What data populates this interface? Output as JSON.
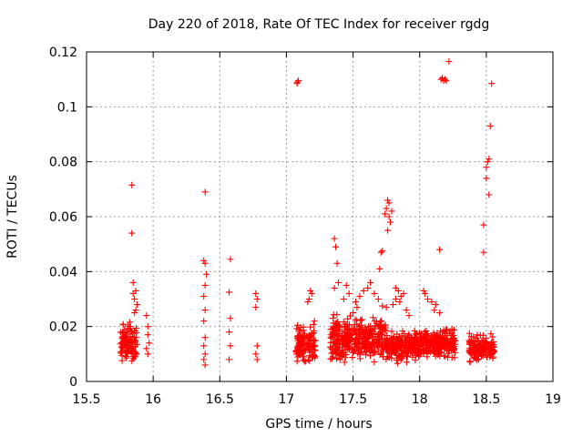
{
  "chart_data": {
    "type": "scatter",
    "title": "Day 220 of 2018, Rate Of TEC Index for receiver rgdg",
    "xlabel": "GPS time / hours",
    "ylabel": "ROTI / TECUs",
    "xlim": [
      15.5,
      19
    ],
    "ylim": [
      0,
      0.12
    ],
    "xticks": [
      "15.5",
      "16",
      "16.5",
      "17",
      "17.5",
      "18",
      "18.5",
      "19"
    ],
    "yticks": [
      "0",
      "0.02",
      "0.04",
      "0.06",
      "0.08",
      "0.1",
      "0.12"
    ],
    "grid": true,
    "marker": "+",
    "colors": {
      "series": "#ff0000",
      "grid": "#a0a0a0",
      "axis": "#000000"
    },
    "series": [
      {
        "name": "ROTI",
        "points": [
          [
            15.84,
            0.0715
          ],
          [
            15.84,
            0.054
          ],
          [
            15.85,
            0.036
          ],
          [
            15.85,
            0.032
          ],
          [
            15.87,
            0.033
          ],
          [
            15.86,
            0.03
          ],
          [
            15.86,
            0.025
          ],
          [
            15.83,
            0.02
          ],
          [
            15.8,
            0.018
          ],
          [
            15.88,
            0.028
          ],
          [
            15.87,
            0.026
          ],
          [
            15.95,
            0.024
          ],
          [
            15.96,
            0.02
          ],
          [
            15.96,
            0.017
          ],
          [
            15.97,
            0.014
          ],
          [
            15.95,
            0.012
          ],
          [
            15.96,
            0.01
          ],
          [
            16.39,
            0.069
          ],
          [
            16.38,
            0.044
          ],
          [
            16.39,
            0.043
          ],
          [
            16.4,
            0.039
          ],
          [
            16.39,
            0.035
          ],
          [
            16.38,
            0.031
          ],
          [
            16.39,
            0.026
          ],
          [
            16.38,
            0.022
          ],
          [
            16.39,
            0.016
          ],
          [
            16.38,
            0.013
          ],
          [
            16.39,
            0.01
          ],
          [
            16.38,
            0.008
          ],
          [
            16.39,
            0.006
          ],
          [
            16.58,
            0.0445
          ],
          [
            16.57,
            0.0325
          ],
          [
            16.58,
            0.023
          ],
          [
            16.57,
            0.018
          ],
          [
            16.58,
            0.013
          ],
          [
            16.57,
            0.008
          ],
          [
            16.77,
            0.032
          ],
          [
            16.78,
            0.03
          ],
          [
            16.77,
            0.027
          ],
          [
            16.78,
            0.013
          ],
          [
            16.77,
            0.01
          ],
          [
            16.78,
            0.008
          ],
          [
            17.08,
            0.109
          ],
          [
            17.09,
            0.1095
          ],
          [
            17.08,
            0.1085
          ],
          [
            17.18,
            0.033
          ],
          [
            17.17,
            0.03
          ],
          [
            17.19,
            0.032
          ],
          [
            17.16,
            0.029
          ],
          [
            17.21,
            0.022
          ],
          [
            17.36,
            0.052
          ],
          [
            17.37,
            0.049
          ],
          [
            17.38,
            0.043
          ],
          [
            17.39,
            0.036
          ],
          [
            17.36,
            0.034
          ],
          [
            17.45,
            0.035
          ],
          [
            17.47,
            0.032
          ],
          [
            17.43,
            0.03
          ],
          [
            17.52,
            0.029
          ],
          [
            17.55,
            0.031
          ],
          [
            17.58,
            0.033
          ],
          [
            17.61,
            0.034
          ],
          [
            17.63,
            0.036
          ],
          [
            17.66,
            0.032
          ],
          [
            17.69,
            0.03
          ],
          [
            17.72,
            0.0275
          ],
          [
            17.75,
            0.027
          ],
          [
            17.53,
            0.027
          ],
          [
            17.5,
            0.025
          ],
          [
            17.76,
            0.066
          ],
          [
            17.77,
            0.065
          ],
          [
            17.75,
            0.063
          ],
          [
            17.74,
            0.061
          ],
          [
            17.77,
            0.06
          ],
          [
            17.78,
            0.058
          ],
          [
            17.76,
            0.055
          ],
          [
            17.79,
            0.062
          ],
          [
            17.72,
            0.0475
          ],
          [
            17.71,
            0.047
          ],
          [
            17.7,
            0.041
          ],
          [
            17.82,
            0.034
          ],
          [
            17.84,
            0.033
          ],
          [
            17.86,
            0.031
          ],
          [
            17.82,
            0.03
          ],
          [
            17.85,
            0.029
          ],
          [
            17.88,
            0.032
          ],
          [
            17.8,
            0.028
          ],
          [
            17.9,
            0.026
          ],
          [
            17.92,
            0.024
          ],
          [
            18.03,
            0.033
          ],
          [
            18.04,
            0.032
          ],
          [
            18.06,
            0.03
          ],
          [
            18.09,
            0.029
          ],
          [
            18.12,
            0.028
          ],
          [
            18.11,
            0.026
          ],
          [
            18.15,
            0.025
          ],
          [
            18.15,
            0.048
          ],
          [
            18.16,
            0.11
          ],
          [
            18.17,
            0.1105
          ],
          [
            18.18,
            0.1095
          ],
          [
            18.19,
            0.11
          ],
          [
            18.2,
            0.1095
          ],
          [
            18.22,
            0.1165
          ],
          [
            18.48,
            0.047
          ],
          [
            18.48,
            0.057
          ],
          [
            18.5,
            0.074
          ],
          [
            18.5,
            0.078
          ],
          [
            18.51,
            0.08
          ],
          [
            18.52,
            0.081
          ],
          [
            18.52,
            0.068
          ],
          [
            18.53,
            0.093
          ],
          [
            18.54,
            0.1085
          ]
        ]
      }
    ],
    "dense_bands": [
      {
        "x": [
          15.75,
          15.88
        ],
        "y": [
          0.005,
          0.024
        ]
      },
      {
        "x": [
          17.07,
          17.22
        ],
        "y": [
          0.005,
          0.022
        ]
      },
      {
        "x": [
          17.33,
          17.75
        ],
        "y": [
          0.005,
          0.026
        ]
      },
      {
        "x": [
          17.75,
          18.0
        ],
        "y": [
          0.006,
          0.02
        ]
      },
      {
        "x": [
          18.0,
          18.27
        ],
        "y": [
          0.007,
          0.021
        ]
      },
      {
        "x": [
          18.37,
          18.56
        ],
        "y": [
          0.006,
          0.018
        ]
      }
    ]
  }
}
